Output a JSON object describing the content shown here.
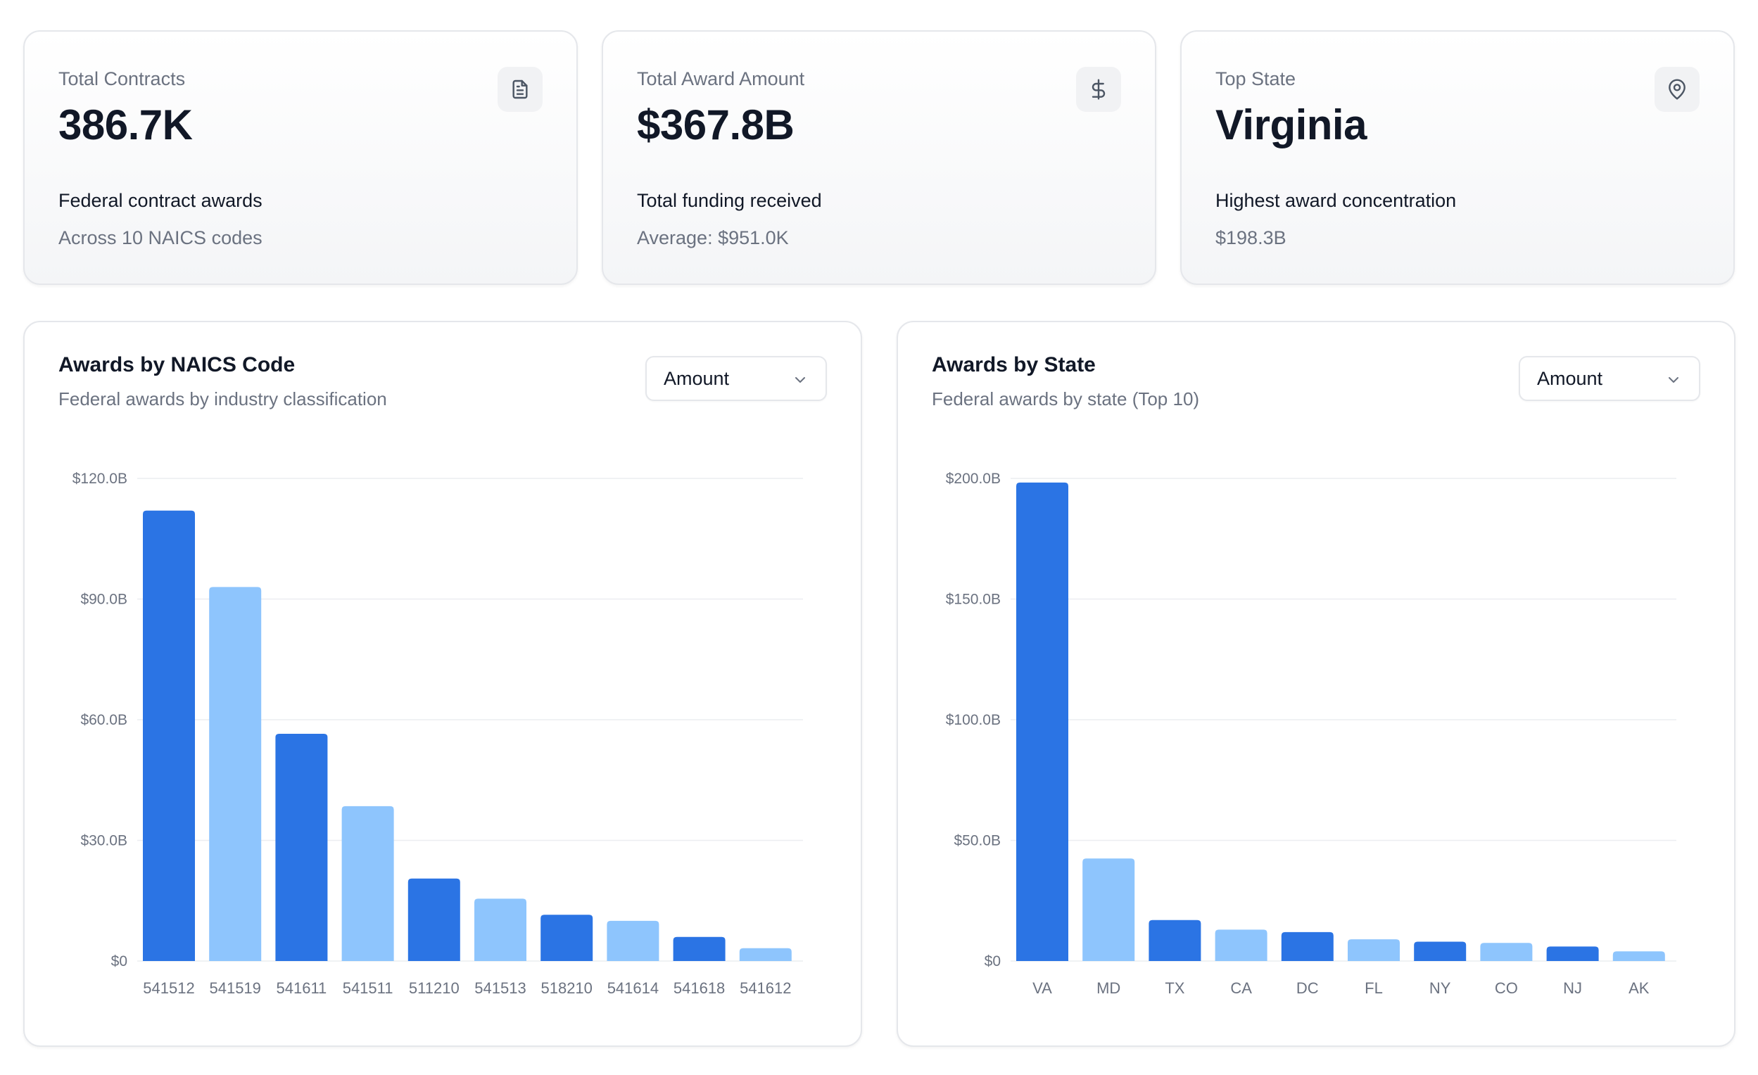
{
  "stats": [
    {
      "label": "Total Contracts",
      "value": "386.7K",
      "description": "Federal contract awards",
      "sub": "Across 10 NAICS codes",
      "icon": "document-icon"
    },
    {
      "label": "Total Award Amount",
      "value": "$367.8B",
      "description": "Total funding received",
      "sub": "Average: $951.0K",
      "icon": "dollar-icon"
    },
    {
      "label": "Top State",
      "value": "Virginia",
      "description": "Highest award concentration",
      "sub": "$198.3B",
      "icon": "map-pin-icon"
    }
  ],
  "colors": {
    "bar_dark": "#2b74e4",
    "bar_light": "#8ec5fd",
    "grid": "#eceef1",
    "card_border": "#e5e7eb"
  },
  "naics_chart": {
    "title": "Awards by NAICS Code",
    "subtitle": "Federal awards by industry classification",
    "select_value": "Amount"
  },
  "state_chart": {
    "title": "Awards by State",
    "subtitle": "Federal awards by state (Top 10)",
    "select_value": "Amount"
  },
  "chart_data": [
    {
      "type": "bar",
      "title": "Awards by NAICS Code",
      "categories": [
        "541512",
        "541519",
        "541611",
        "541511",
        "511210",
        "541513",
        "518210",
        "541614",
        "541618",
        "541612"
      ],
      "values": [
        112,
        93,
        56.5,
        38.5,
        20.5,
        15.5,
        11.5,
        10,
        6,
        3.2
      ],
      "unit": "B",
      "ylim": [
        0,
        120
      ],
      "yticks": [
        0,
        30,
        60,
        90,
        120
      ],
      "ytick_labels": [
        "$0",
        "$30.0B",
        "$60.0B",
        "$90.0B",
        "$120.0B"
      ],
      "grid": true,
      "legend": "none"
    },
    {
      "type": "bar",
      "title": "Awards by State",
      "categories": [
        "VA",
        "MD",
        "TX",
        "CA",
        "DC",
        "FL",
        "NY",
        "CO",
        "NJ",
        "AK"
      ],
      "values": [
        198.3,
        42.5,
        17,
        13,
        12,
        9,
        8,
        7.5,
        6,
        4
      ],
      "unit": "B",
      "ylim": [
        0,
        200
      ],
      "yticks": [
        0,
        50,
        100,
        150,
        200
      ],
      "ytick_labels": [
        "$0",
        "$50.0B",
        "$100.0B",
        "$150.0B",
        "$200.0B"
      ],
      "grid": true,
      "legend": "none"
    }
  ]
}
